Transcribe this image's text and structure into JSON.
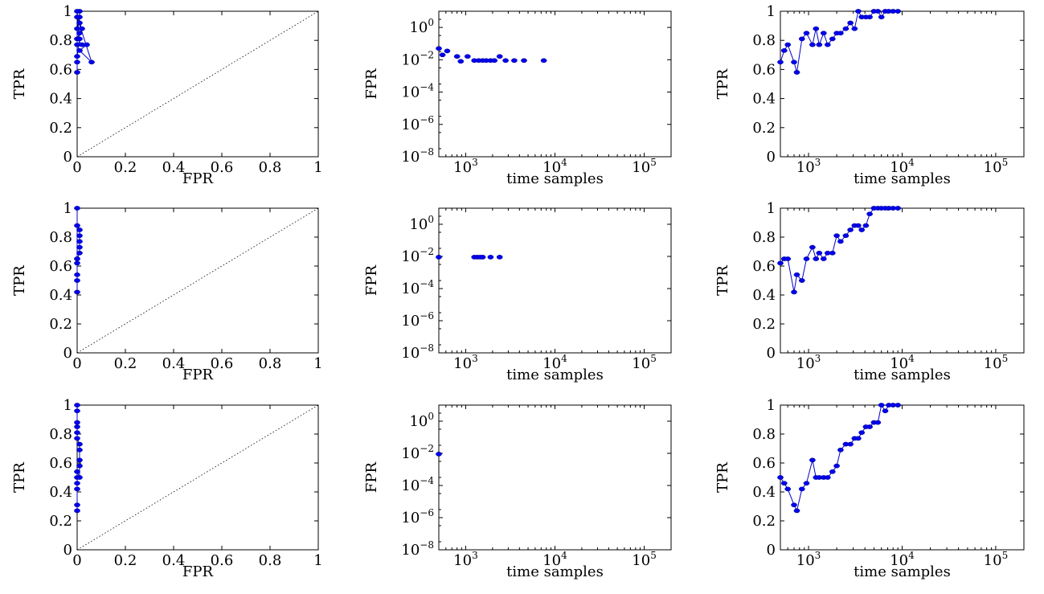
{
  "colors": {
    "series": "#0000ee",
    "series_stroke": "#0000cc"
  },
  "chart_data": [
    {
      "type": "line",
      "subtype": "roc",
      "title": "",
      "xlabel": "FPR",
      "ylabel": "TPR",
      "xlim": [
        0,
        1
      ],
      "ylim": [
        0,
        1
      ],
      "xticks": [
        "0",
        "0.2",
        "0.4",
        "0.6",
        "0.8",
        "1"
      ],
      "yticks": [
        "0",
        "0.2",
        "0.4",
        "0.6",
        "0.8",
        "1"
      ],
      "diagonal": true,
      "x": [
        0,
        0,
        0,
        0,
        0.01,
        0.01,
        0.01,
        0.02,
        0.01,
        0.0,
        0.02,
        0.04,
        0.01,
        0.06,
        0.0,
        0.0,
        0.01,
        0.0
      ],
      "y": [
        0.58,
        0.65,
        0.77,
        0.88,
        0.96,
        1.0,
        0.92,
        0.88,
        0.85,
        0.81,
        0.77,
        0.77,
        0.73,
        0.65,
        0.96,
        1.0,
        0.81,
        0.69
      ]
    },
    {
      "type": "line",
      "subtype": "semilog",
      "title": "",
      "xlabel": "time samples",
      "ylabel": "FPR",
      "xscale": "log",
      "yscale": "log",
      "xlim": [
        500,
        200000
      ],
      "ylim": [
        1e-08,
        10
      ],
      "xticks": [
        1000,
        10000,
        100000
      ],
      "yticks": [
        1e-08,
        1e-06,
        0.0001,
        0.01,
        1
      ],
      "x": [
        500,
        550,
        620,
        800,
        880,
        1050,
        1250,
        1400,
        1550,
        1700,
        1900,
        2100,
        2400,
        2800,
        3500,
        4500,
        7500
      ],
      "y": [
        0.05,
        0.02,
        0.035,
        0.016,
        0.008,
        0.016,
        0.009,
        0.009,
        0.009,
        0.009,
        0.009,
        0.009,
        0.016,
        0.009,
        0.009,
        0.009,
        0.009
      ],
      "connect": false
    },
    {
      "type": "line",
      "subtype": "semilog-x",
      "title": "",
      "xlabel": "time samples",
      "ylabel": "TPR",
      "xscale": "log",
      "xlim": [
        500,
        200000
      ],
      "ylim": [
        0,
        1
      ],
      "xticks": [
        1000,
        10000,
        100000
      ],
      "yticks": [
        "0",
        "0.2",
        "0.4",
        "0.6",
        "0.8",
        "1"
      ],
      "x": [
        500,
        550,
        600,
        700,
        750,
        850,
        950,
        1100,
        1200,
        1300,
        1450,
        1600,
        1800,
        2000,
        2200,
        2500,
        2800,
        3100,
        3400,
        3700,
        4100,
        4500,
        5000,
        5500,
        6000,
        6600,
        7200,
        8000,
        9000
      ],
      "y": [
        0.65,
        0.73,
        0.77,
        0.65,
        0.58,
        0.81,
        0.85,
        0.77,
        0.88,
        0.77,
        0.85,
        0.77,
        0.81,
        0.85,
        0.85,
        0.88,
        0.92,
        0.88,
        1.0,
        0.96,
        0.96,
        0.96,
        1.0,
        1.0,
        0.96,
        1.0,
        1.0,
        1.0,
        1.0
      ]
    },
    {
      "type": "line",
      "subtype": "roc",
      "title": "",
      "xlabel": "FPR",
      "ylabel": "TPR",
      "xlim": [
        0,
        1
      ],
      "ylim": [
        0,
        1
      ],
      "xticks": [
        "0",
        "0.2",
        "0.4",
        "0.6",
        "0.8",
        "1"
      ],
      "yticks": [
        "0",
        "0.2",
        "0.4",
        "0.6",
        "0.8",
        "1"
      ],
      "diagonal": true,
      "x": [
        0,
        0,
        0,
        0,
        0,
        0.01,
        0.01,
        0.01,
        0.01,
        0.01,
        0.0,
        0.0,
        0.0
      ],
      "y": [
        0.42,
        0.5,
        0.54,
        0.62,
        0.65,
        0.69,
        0.73,
        0.77,
        0.81,
        0.85,
        0.88,
        1.0,
        0.65
      ]
    },
    {
      "type": "line",
      "subtype": "semilog",
      "title": "",
      "xlabel": "time samples",
      "ylabel": "FPR",
      "xscale": "log",
      "yscale": "log",
      "xlim": [
        500,
        200000
      ],
      "ylim": [
        1e-08,
        10
      ],
      "xticks": [
        1000,
        10000,
        100000
      ],
      "yticks": [
        1e-08,
        1e-06,
        0.0001,
        0.01,
        1
      ],
      "x": [
        500,
        1250,
        1350,
        1450,
        1550,
        1900,
        2400
      ],
      "y": [
        0.009,
        0.009,
        0.009,
        0.009,
        0.009,
        0.009,
        0.009
      ],
      "connect": false
    },
    {
      "type": "line",
      "subtype": "semilog-x",
      "title": "",
      "xlabel": "time samples",
      "ylabel": "TPR",
      "xscale": "log",
      "xlim": [
        500,
        200000
      ],
      "ylim": [
        0,
        1
      ],
      "xticks": [
        1000,
        10000,
        100000
      ],
      "yticks": [
        "0",
        "0.2",
        "0.4",
        "0.6",
        "0.8",
        "1"
      ],
      "x": [
        500,
        550,
        600,
        700,
        750,
        850,
        950,
        1100,
        1200,
        1300,
        1450,
        1600,
        1800,
        2000,
        2200,
        2500,
        2800,
        3100,
        3400,
        3700,
        4100,
        4500,
        5000,
        5500,
        6000,
        6600,
        7200,
        8000,
        9000
      ],
      "y": [
        0.62,
        0.65,
        0.65,
        0.42,
        0.54,
        0.5,
        0.65,
        0.73,
        0.65,
        0.69,
        0.65,
        0.69,
        0.69,
        0.81,
        0.77,
        0.81,
        0.85,
        0.88,
        0.88,
        0.85,
        0.88,
        0.96,
        1.0,
        1.0,
        1.0,
        1.0,
        1.0,
        1.0,
        1.0
      ]
    },
    {
      "type": "line",
      "subtype": "roc",
      "title": "",
      "xlabel": "FPR",
      "ylabel": "TPR",
      "xlim": [
        0,
        1
      ],
      "ylim": [
        0,
        1
      ],
      "xticks": [
        "0",
        "0.2",
        "0.4",
        "0.6",
        "0.8",
        "1"
      ],
      "yticks": [
        "0",
        "0.2",
        "0.4",
        "0.6",
        "0.8",
        "1"
      ],
      "diagonal": true,
      "x": [
        0,
        0,
        0,
        0,
        0,
        0,
        0.01,
        0.01,
        0.01,
        0.01,
        0.01,
        0,
        0,
        0,
        0,
        0,
        0
      ],
      "y": [
        0.27,
        0.31,
        0.42,
        0.46,
        0.5,
        0.54,
        0.5,
        0.58,
        0.62,
        0.69,
        0.73,
        0.77,
        0.81,
        0.85,
        0.88,
        0.96,
        1.0
      ]
    },
    {
      "type": "line",
      "subtype": "semilog",
      "title": "",
      "xlabel": "time samples",
      "ylabel": "FPR",
      "xscale": "log",
      "yscale": "log",
      "xlim": [
        500,
        200000
      ],
      "ylim": [
        1e-08,
        10
      ],
      "xticks": [
        1000,
        10000,
        100000
      ],
      "yticks": [
        1e-08,
        1e-06,
        0.0001,
        0.01,
        1
      ],
      "x": [
        500
      ],
      "y": [
        0.009
      ],
      "connect": false
    },
    {
      "type": "line",
      "subtype": "semilog-x",
      "title": "",
      "xlabel": "time samples",
      "ylabel": "TPR",
      "xscale": "log",
      "xlim": [
        500,
        200000
      ],
      "ylim": [
        0,
        1
      ],
      "xticks": [
        1000,
        10000,
        100000
      ],
      "yticks": [
        "0",
        "0.2",
        "0.4",
        "0.6",
        "0.8",
        "1"
      ],
      "x": [
        500,
        550,
        600,
        700,
        750,
        850,
        950,
        1100,
        1200,
        1300,
        1450,
        1600,
        1800,
        2000,
        2200,
        2500,
        2800,
        3100,
        3400,
        3700,
        4100,
        4500,
        5000,
        5500,
        6000,
        6600,
        7200,
        8000,
        9000
      ],
      "y": [
        0.5,
        0.46,
        0.42,
        0.31,
        0.27,
        0.42,
        0.46,
        0.62,
        0.5,
        0.5,
        0.5,
        0.5,
        0.54,
        0.58,
        0.69,
        0.73,
        0.73,
        0.77,
        0.77,
        0.81,
        0.85,
        0.85,
        0.88,
        0.88,
        1.0,
        0.96,
        1.0,
        1.0,
        1.0
      ]
    }
  ]
}
